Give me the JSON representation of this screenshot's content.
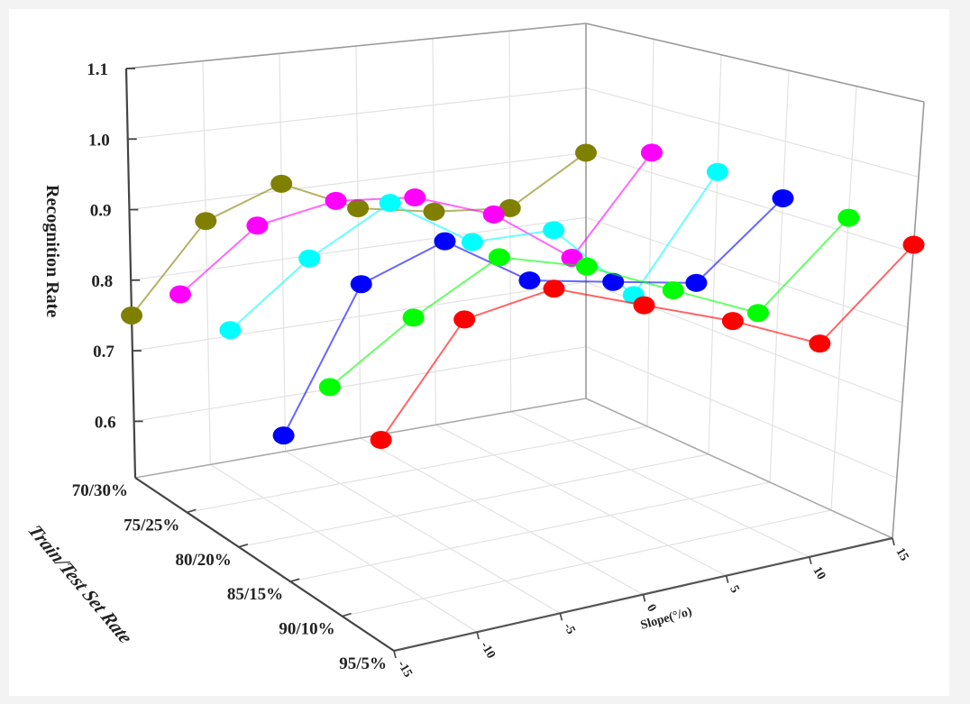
{
  "chart_data": {
    "type": "line",
    "subtype": "3d-waterfall",
    "title": "",
    "xlabel": "Slope(%)",
    "ylabel": "Train/Test Set Rate",
    "zlabel": "Recognition Rate",
    "x": [
      -15,
      -10,
      -5,
      0,
      5,
      10,
      15
    ],
    "x_tick_labels": [
      "-15",
      "-10",
      "-5",
      "0",
      "5",
      "10",
      "15"
    ],
    "categories": [
      "70/30%",
      "75/25%",
      "80/20%",
      "85/15%",
      "90/10%",
      "95/5%"
    ],
    "z_ticks": [
      0.6,
      0.7,
      0.8,
      0.9,
      1.0,
      1.1
    ],
    "z_tick_labels": [
      "0.6",
      "0.7",
      "0.8",
      "0.9",
      "1.0",
      "1.1"
    ],
    "zlim": [
      0.52,
      1.1
    ],
    "grid": true,
    "legend": null,
    "series": [
      {
        "name": "70/30%",
        "color": "#808000",
        "values": [
          0.75,
          0.87,
          0.91,
          0.86,
          0.84,
          0.83,
          0.9
        ]
      },
      {
        "name": "75/25%",
        "color": "#ff00ff",
        "values": [
          0.82,
          0.9,
          0.92,
          0.91,
          0.87,
          0.79,
          0.93
        ]
      },
      {
        "name": "80/20%",
        "color": "#00ffff",
        "values": [
          0.81,
          0.89,
          0.95,
          0.88,
          0.88,
          0.77,
          0.93
        ]
      },
      {
        "name": "85/15%",
        "color": "#0000ff",
        "values": [
          0.71,
          0.89,
          0.93,
          0.86,
          0.84,
          0.82,
          0.92
        ]
      },
      {
        "name": "90/10%",
        "color": "#00ff00",
        "values": [
          0.81,
          0.88,
          0.94,
          0.91,
          0.86,
          0.81,
          0.92
        ]
      },
      {
        "name": "95/5%",
        "color": "#ff0000",
        "values": [
          0.78,
          0.91,
          0.93,
          0.89,
          0.85,
          0.8,
          0.91
        ]
      }
    ]
  },
  "axes": {
    "z_title": "Recognition Rate",
    "y_title": "Train/Test Set Rate",
    "x_title": "Slope(°/o)"
  }
}
